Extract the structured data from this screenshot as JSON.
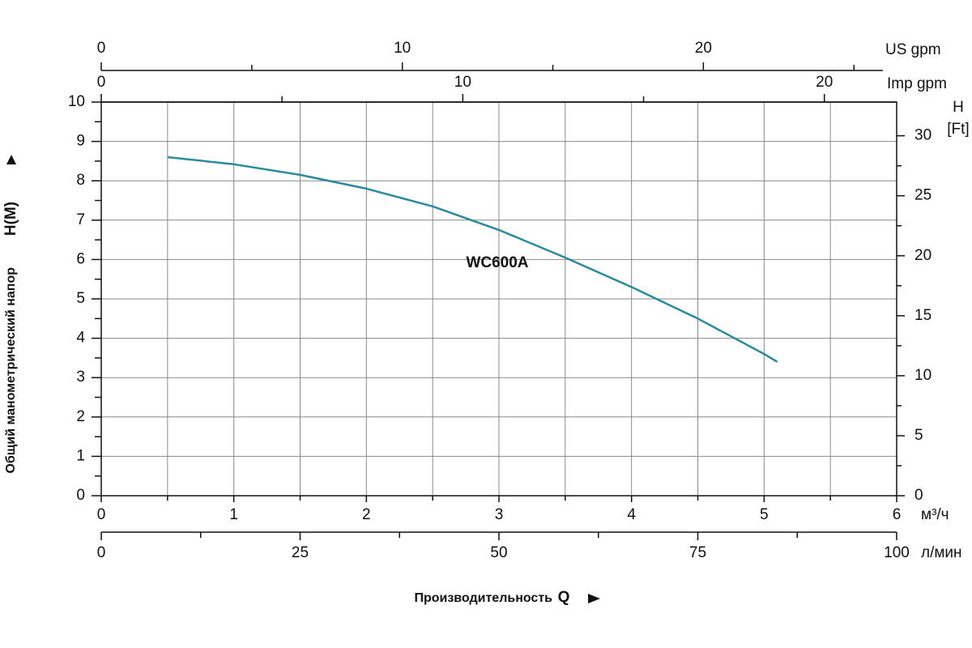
{
  "chart_data": {
    "type": "line",
    "y_label": "Общий манометрический напор",
    "y_label_unit": "H(M)",
    "y2_label": "H",
    "y2_unit": "[Ft]",
    "x_label": "Производительность",
    "x_label_symbol": "Q",
    "x_unit": "м³/ч",
    "x": [
      0.5,
      1,
      1.5,
      2,
      2.5,
      3,
      3.5,
      4,
      4.5,
      5,
      5.1
    ],
    "series": [
      {
        "name": "WC600A",
        "color": "#2a8a9e",
        "values": [
          8.6,
          8.42,
          8.15,
          7.8,
          7.35,
          6.75,
          6.05,
          5.3,
          4.5,
          3.6,
          3.4
        ]
      }
    ],
    "xlim": [
      0,
      6
    ],
    "xticks": [
      0,
      1,
      2,
      3,
      4,
      5,
      6
    ],
    "xminor": [
      0.5,
      1.5,
      2.5,
      3.5,
      4.5,
      5.5
    ],
    "ylim": [
      0,
      10
    ],
    "yticks": [
      0,
      1,
      2,
      3,
      4,
      5,
      6,
      7,
      8,
      9,
      10
    ],
    "yminor": [
      0.5,
      1.5,
      2.5,
      3.5,
      4.5,
      5.5,
      6.5,
      7.5,
      8.5,
      9.5
    ],
    "y2lim": [
      0,
      32.81
    ],
    "y2ticks": [
      0,
      5,
      10,
      15,
      20,
      25,
      30
    ],
    "y2minor": [
      2.5,
      7.5,
      12.5,
      17.5,
      22.5,
      27.5
    ],
    "grid": true,
    "extra_axes": [
      {
        "label": "US  gpm",
        "xlim": [
          0,
          26.42
        ],
        "xticks": [
          0,
          10,
          20
        ],
        "xminor": [
          5,
          15,
          25
        ]
      },
      {
        "label": "Imp gpm",
        "xlim": [
          0,
          22
        ],
        "xticks": [
          0,
          10,
          20
        ],
        "xminor": [
          5,
          15
        ]
      },
      {
        "label": "л/мин",
        "xlim": [
          0,
          100
        ],
        "xticks": [
          0,
          25,
          50,
          75,
          100
        ],
        "xminor": [
          12.5,
          37.5,
          62.5,
          87.5
        ]
      }
    ]
  }
}
